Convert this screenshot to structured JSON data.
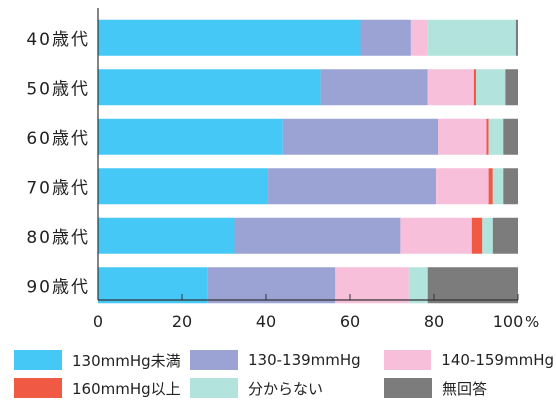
{
  "chart_data": {
    "type": "bar",
    "orientation": "horizontal",
    "stacked": true,
    "categories": [
      "40歳代",
      "50歳代",
      "60歳代",
      "70歳代",
      "80歳代",
      "90歳代"
    ],
    "series": [
      {
        "name": "130mmHg未満",
        "color": "#45c8f5",
        "values": [
          62.5,
          53.0,
          44.0,
          40.5,
          32.5,
          26.0
        ]
      },
      {
        "name": "130-139mmHg",
        "color": "#9aa3d4",
        "values": [
          12.0,
          25.5,
          37.0,
          40.0,
          39.5,
          30.5
        ]
      },
      {
        "name": "140-159mmHg",
        "color": "#f7bfd9",
        "values": [
          4.0,
          11.0,
          11.5,
          12.5,
          17.0,
          17.5
        ]
      },
      {
        "name": "160mmHg以上",
        "color": "#f05a45",
        "values": [
          0.0,
          0.5,
          0.5,
          1.0,
          2.5,
          0.0
        ]
      },
      {
        "name": "分からない",
        "color": "#b2e3dc",
        "values": [
          21.0,
          7.0,
          3.5,
          2.5,
          2.5,
          4.5
        ]
      },
      {
        "name": "無回答",
        "color": "#7c7c7c",
        "values": [
          0.5,
          3.0,
          3.5,
          3.5,
          6.0,
          21.5
        ]
      }
    ],
    "x_ticks": [
      "0",
      "20",
      "40",
      "60",
      "80",
      "100"
    ],
    "x_unit": "%",
    "xlim": [
      0,
      100
    ],
    "legend_position": "bottom",
    "grid": false
  }
}
